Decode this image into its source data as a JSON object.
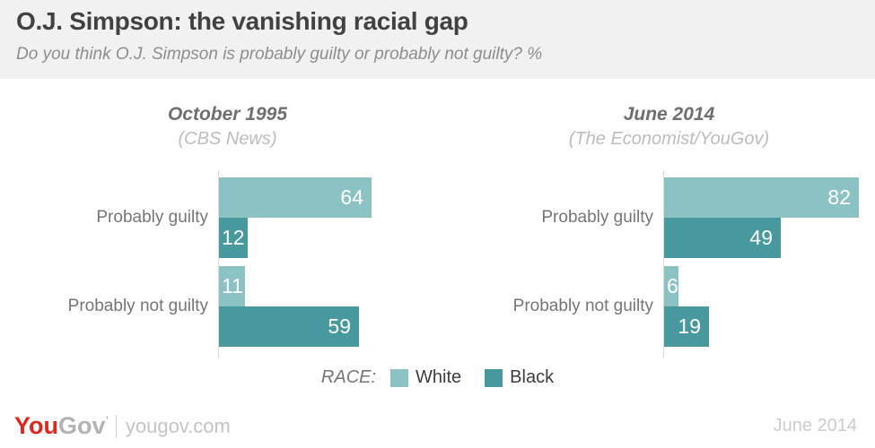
{
  "header": {
    "title": "O.J. Simpson: the vanishing racial gap",
    "subtitle": "Do you think O.J. Simpson is probably guilty or probably not guilty? %"
  },
  "chart_data": [
    {
      "type": "bar",
      "orientation": "horizontal",
      "title": "October 1995",
      "source": "(CBS News)",
      "categories": [
        "Probably guilty",
        "Probably not guilty"
      ],
      "series": [
        {
          "name": "White",
          "values": [
            64,
            11
          ]
        },
        {
          "name": "Black",
          "values": [
            12,
            59
          ]
        }
      ],
      "xlim": [
        0,
        100
      ],
      "grid": false,
      "value_labels": "inside-end"
    },
    {
      "type": "bar",
      "orientation": "horizontal",
      "title": "June 2014",
      "source": "(The Economist/YouGov)",
      "categories": [
        "Probably guilty",
        "Probably not guilty"
      ],
      "series": [
        {
          "name": "White",
          "values": [
            82,
            6
          ]
        },
        {
          "name": "Black",
          "values": [
            49,
            19
          ]
        }
      ],
      "xlim": [
        0,
        100
      ],
      "grid": false,
      "value_labels": "inside-end"
    }
  ],
  "legend": {
    "label": "RACE:",
    "position": "bottom",
    "items": [
      {
        "name": "White",
        "color": "#8bc3c5"
      },
      {
        "name": "Black",
        "color": "#47999d"
      }
    ]
  },
  "footer": {
    "logo": {
      "you": "You",
      "gov": "Gov",
      "tm": "’"
    },
    "domain": "yougov.com",
    "date": "June 2014"
  },
  "colors": {
    "header_bg": "#f1f1f1",
    "series_white": "#8bc3c5",
    "series_black": "#47999d",
    "logo_red": "#e0261c",
    "axis_line": "#dcdcdc"
  }
}
